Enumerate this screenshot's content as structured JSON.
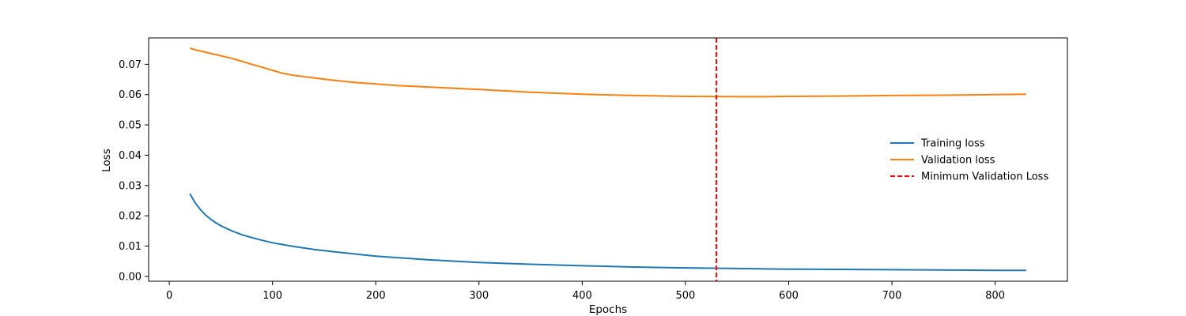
{
  "chart_data": {
    "type": "line",
    "title": "",
    "xlabel": "Epochs",
    "ylabel": "Loss",
    "xlim": [
      -20,
      870
    ],
    "ylim": [
      -0.0016,
      0.0787
    ],
    "xticks": [
      0,
      100,
      200,
      300,
      400,
      500,
      600,
      700,
      800
    ],
    "yticks": [
      0.0,
      0.01,
      0.02,
      0.03,
      0.04,
      0.05,
      0.06,
      0.07
    ],
    "ytick_labels": [
      "0.00",
      "0.01",
      "0.02",
      "0.03",
      "0.04",
      "0.05",
      "0.06",
      "0.07"
    ],
    "grid": false,
    "legend_position": "center-right",
    "series": [
      {
        "name": "Training loss",
        "color": "#1f77b4",
        "style": "solid",
        "x": [
          20,
          25,
          30,
          35,
          40,
          45,
          50,
          60,
          70,
          80,
          90,
          100,
          120,
          140,
          160,
          180,
          200,
          250,
          300,
          350,
          400,
          450,
          500,
          550,
          600,
          650,
          700,
          750,
          800,
          830
        ],
        "y": [
          0.0273,
          0.0243,
          0.0221,
          0.0203,
          0.0189,
          0.0177,
          0.0167,
          0.0151,
          0.0138,
          0.0128,
          0.0119,
          0.0111,
          0.0099,
          0.0089,
          0.0081,
          0.0074,
          0.0067,
          0.0055,
          0.0046,
          0.004,
          0.0035,
          0.0031,
          0.0028,
          0.0026,
          0.0024,
          0.0023,
          0.0022,
          0.0021,
          0.002,
          0.002
        ]
      },
      {
        "name": "Validation loss",
        "color": "#ff7f0e",
        "style": "solid",
        "x": [
          20,
          25,
          30,
          40,
          50,
          60,
          70,
          80,
          90,
          100,
          110,
          120,
          140,
          160,
          180,
          200,
          220,
          250,
          300,
          350,
          400,
          450,
          500,
          550,
          580,
          600,
          650,
          700,
          750,
          800,
          830
        ],
        "y": [
          0.0753,
          0.0748,
          0.0744,
          0.0736,
          0.0728,
          0.072,
          0.071,
          0.07,
          0.069,
          0.068,
          0.067,
          0.0664,
          0.0655,
          0.0647,
          0.064,
          0.0635,
          0.063,
          0.0625,
          0.0617,
          0.0608,
          0.0601,
          0.0597,
          0.0594,
          0.0593,
          0.0593,
          0.0594,
          0.0595,
          0.0597,
          0.0598,
          0.06,
          0.0601
        ]
      }
    ],
    "vlines": [
      {
        "name": "Minimum Validation Loss",
        "x": 530,
        "color": "#ff0000",
        "style": "dashed"
      }
    ]
  }
}
